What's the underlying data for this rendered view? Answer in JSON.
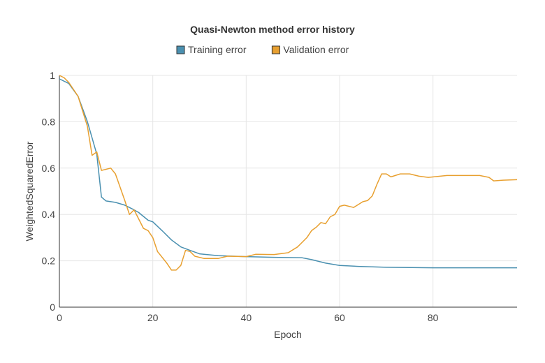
{
  "chart_data": {
    "type": "line",
    "title": "Quasi-Newton method error history",
    "xlabel": "Epoch",
    "ylabel": "WeightedSquaredError",
    "xlim": [
      0,
      98
    ],
    "ylim": [
      0,
      1
    ],
    "x_ticks": [
      0,
      20,
      40,
      60,
      80
    ],
    "y_ticks": [
      0,
      0.2,
      0.4,
      0.6,
      0.8,
      1
    ],
    "y_tick_labels": [
      "0",
      "0.2",
      "0.4",
      "0.6",
      "0.8",
      "1"
    ],
    "grid": true,
    "legend_position": "top-center",
    "series": [
      {
        "name": "Training error",
        "color": "#4a90b0",
        "points": [
          [
            0,
            0.985
          ],
          [
            2,
            0.965
          ],
          [
            4,
            0.91
          ],
          [
            6,
            0.8
          ],
          [
            7,
            0.73
          ],
          [
            8,
            0.66
          ],
          [
            9,
            0.475
          ],
          [
            10,
            0.458
          ],
          [
            12,
            0.452
          ],
          [
            14,
            0.44
          ],
          [
            16,
            0.42
          ],
          [
            17,
            0.408
          ],
          [
            19,
            0.375
          ],
          [
            20,
            0.368
          ],
          [
            22,
            0.33
          ],
          [
            24,
            0.29
          ],
          [
            26,
            0.26
          ],
          [
            28,
            0.245
          ],
          [
            30,
            0.23
          ],
          [
            34,
            0.222
          ],
          [
            40,
            0.218
          ],
          [
            46,
            0.215
          ],
          [
            52,
            0.213
          ],
          [
            54,
            0.205
          ],
          [
            57,
            0.19
          ],
          [
            60,
            0.18
          ],
          [
            64,
            0.176
          ],
          [
            70,
            0.172
          ],
          [
            80,
            0.17
          ],
          [
            98,
            0.17
          ]
        ]
      },
      {
        "name": "Validation error",
        "color": "#e8a030",
        "points": [
          [
            0,
            1.0
          ],
          [
            1,
            0.99
          ],
          [
            2,
            0.97
          ],
          [
            4,
            0.91
          ],
          [
            6,
            0.78
          ],
          [
            7,
            0.655
          ],
          [
            8,
            0.67
          ],
          [
            9,
            0.59
          ],
          [
            11,
            0.6
          ],
          [
            12,
            0.575
          ],
          [
            14,
            0.46
          ],
          [
            15,
            0.4
          ],
          [
            16,
            0.42
          ],
          [
            18,
            0.34
          ],
          [
            19,
            0.33
          ],
          [
            20,
            0.3
          ],
          [
            21,
            0.24
          ],
          [
            23,
            0.19
          ],
          [
            24,
            0.16
          ],
          [
            25,
            0.16
          ],
          [
            26,
            0.18
          ],
          [
            27,
            0.245
          ],
          [
            28,
            0.24
          ],
          [
            29,
            0.22
          ],
          [
            31,
            0.21
          ],
          [
            34,
            0.21
          ],
          [
            36,
            0.22
          ],
          [
            40,
            0.218
          ],
          [
            42,
            0.228
          ],
          [
            46,
            0.227
          ],
          [
            49,
            0.235
          ],
          [
            51,
            0.26
          ],
          [
            53,
            0.3
          ],
          [
            54,
            0.33
          ],
          [
            55,
            0.345
          ],
          [
            56,
            0.365
          ],
          [
            57,
            0.36
          ],
          [
            58,
            0.39
          ],
          [
            59,
            0.4
          ],
          [
            60,
            0.435
          ],
          [
            61,
            0.44
          ],
          [
            63,
            0.43
          ],
          [
            65,
            0.455
          ],
          [
            66,
            0.46
          ],
          [
            67,
            0.48
          ],
          [
            68,
            0.53
          ],
          [
            69,
            0.575
          ],
          [
            70,
            0.575
          ],
          [
            71,
            0.562
          ],
          [
            73,
            0.575
          ],
          [
            75,
            0.575
          ],
          [
            77,
            0.565
          ],
          [
            79,
            0.56
          ],
          [
            83,
            0.568
          ],
          [
            90,
            0.568
          ],
          [
            92,
            0.56
          ],
          [
            93,
            0.545
          ],
          [
            95,
            0.548
          ],
          [
            98,
            0.55
          ]
        ]
      }
    ]
  }
}
